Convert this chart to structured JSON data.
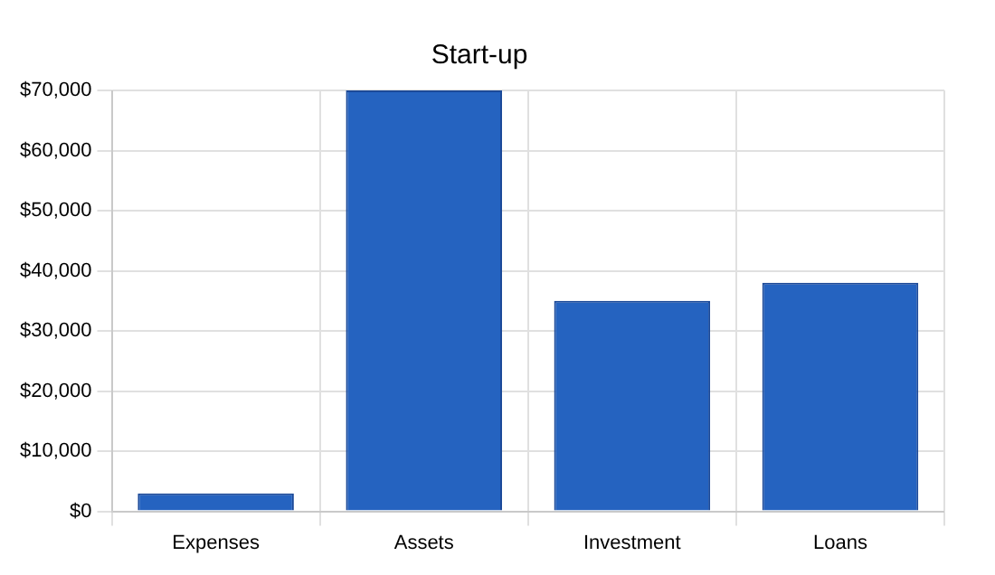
{
  "chart_data": {
    "type": "bar",
    "title": "Start-up",
    "categories": [
      "Expenses",
      "Assets",
      "Investment",
      "Loans"
    ],
    "values": [
      3000,
      70000,
      35000,
      38000
    ],
    "color": "#2563c0",
    "ylim": [
      0,
      70000
    ],
    "yticks": [
      {
        "value": 0,
        "label": "$0"
      },
      {
        "value": 10000,
        "label": "$10,000"
      },
      {
        "value": 20000,
        "label": "$20,000"
      },
      {
        "value": 30000,
        "label": "$30,000"
      },
      {
        "value": 40000,
        "label": "$40,000"
      },
      {
        "value": 50000,
        "label": "$50,000"
      },
      {
        "value": 60000,
        "label": "$60,000"
      },
      {
        "value": 70000,
        "label": "$70,000"
      }
    ],
    "grid": true,
    "legend": false
  }
}
